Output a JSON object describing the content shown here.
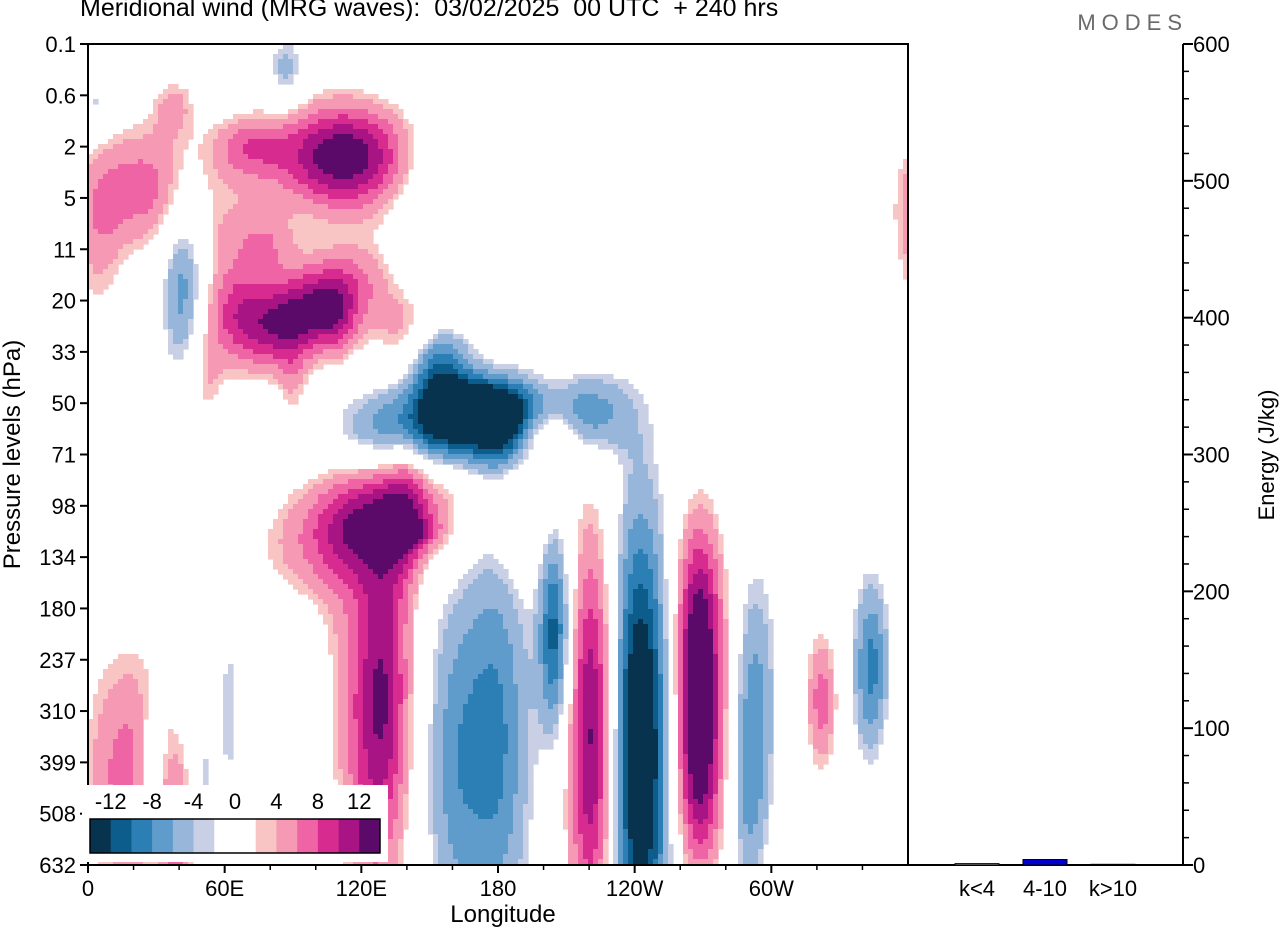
{
  "header": {
    "title": "Meridional wind (MRG waves):  03/02/2025  00 UTC  + 240 hrs",
    "brand": "MODES"
  },
  "chart_data": [
    {
      "type": "heatmap",
      "title": "Meridional wind (MRG waves):  03/02/2025  00 UTC  + 240 hrs",
      "xlabel": "Longitude",
      "ylabel": "Pressure levels (hPa)",
      "x_ticks": [
        "0",
        "60E",
        "120E",
        "180",
        "120W",
        "60W"
      ],
      "y_ticks": [
        "0.1",
        "0.6",
        "2",
        "5",
        "11",
        "20",
        "33",
        "50",
        "71",
        "98",
        "134",
        "180",
        "237",
        "310",
        "399",
        "508",
        "632"
      ],
      "colorbar": {
        "labels": [
          "-12",
          "-8",
          "-4",
          "0",
          "4",
          "8",
          "12"
        ],
        "colors": [
          "#08334f",
          "#0c5c8c",
          "#2b7fb5",
          "#5f9ccb",
          "#97b6da",
          "#c9d0e6",
          "#ffffff",
          "#ffffff",
          "#f8c4c4",
          "#f599b4",
          "#ee64a4",
          "#d72b90",
          "#a81484",
          "#5c0a6a"
        ]
      },
      "features": [
        {
          "kind": "blob",
          "lon": 97,
          "level": 5.2,
          "wlon": 17,
          "wlev": 0.75,
          "value": 13,
          "rot": 0.2
        },
        {
          "kind": "blob",
          "lon": 125,
          "level": 9.3,
          "wlon": 28,
          "wlev": 0.9,
          "value": 10,
          "rot": 0.12
        },
        {
          "kind": "blob",
          "lon": 138,
          "level": 9.5,
          "wlon": 12,
          "wlev": 0.25,
          "value": 5,
          "rot": 0
        },
        {
          "kind": "blob",
          "lon": 161,
          "level": 7.4,
          "wlon": 32,
          "wlev": 0.6,
          "value": -15,
          "rot": 0.05
        },
        {
          "kind": "blob",
          "lon": 171,
          "level": 7.0,
          "wlon": 16,
          "wlev": 0.35,
          "value": -6,
          "rot": 0
        },
        {
          "kind": "blob",
          "lon": 154,
          "level": 6.2,
          "wlon": 10,
          "wlev": 0.55,
          "value": -9,
          "rot": 0
        },
        {
          "kind": "blob",
          "lon": 141,
          "level": 5.5,
          "wlon": 12,
          "wlev": 0.6,
          "value": 5,
          "rot": 0
        },
        {
          "kind": "blob",
          "lon": 184,
          "level": 7.7,
          "wlon": 9,
          "wlev": 0.55,
          "value": -5,
          "rot": 0
        },
        {
          "kind": "blob",
          "lon": 200,
          "level": 7.6,
          "wlon": 10,
          "wlev": 0.35,
          "value": 4.5,
          "rot": 0
        },
        {
          "kind": "blob",
          "lon": 220,
          "level": 7.2,
          "wlon": 12,
          "wlev": 0.6,
          "value": -6,
          "rot": 0
        },
        {
          "kind": "blob",
          "lon": 112,
          "level": 2.2,
          "wlon": 21,
          "wlev": 0.75,
          "value": 14,
          "rot": 0
        },
        {
          "kind": "blob",
          "lon": 66,
          "level": 5.2,
          "wlon": 12,
          "wlev": 0.6,
          "value": 7,
          "rot": 0
        },
        {
          "kind": "blob",
          "lon": 70,
          "level": 2.0,
          "wlon": 12,
          "wlev": 0.45,
          "value": 6,
          "rot": 0
        },
        {
          "kind": "blob",
          "lon": 42,
          "level": 4.7,
          "wlon": 7,
          "wlev": 1.3,
          "value": -8,
          "rot": 0
        },
        {
          "kind": "blob",
          "lon": 51,
          "level": 6.5,
          "wlon": 6,
          "wlev": 0.7,
          "value": 4,
          "rot": 0
        },
        {
          "kind": "blob",
          "lon": 38,
          "level": 1.2,
          "wlon": 7,
          "wlev": 0.45,
          "value": 4,
          "rot": 0
        },
        {
          "kind": "blob",
          "lon": 87,
          "level": 0.5,
          "wlon": 6,
          "wlev": 0.5,
          "value": -5,
          "rot": 0
        },
        {
          "kind": "blob",
          "lon": 148,
          "level": 3.5,
          "wlon": 9,
          "wlev": 1.2,
          "value": -3.5,
          "rot": 0
        },
        {
          "kind": "blob",
          "lon": 176,
          "level": 4.2,
          "wlon": 8,
          "wlev": 0.9,
          "value": 3,
          "rot": 0
        },
        {
          "kind": "blob",
          "lon": 25,
          "level": 2.8,
          "wlon": 17,
          "wlev": 0.9,
          "value": 7,
          "rot": 0
        },
        {
          "kind": "blob",
          "lon": 4,
          "level": 3.8,
          "wlon": 8,
          "wlev": 1.2,
          "value": 4,
          "rot": 0
        },
        {
          "kind": "blob",
          "lon": 3,
          "level": 1.2,
          "wlon": 5,
          "wlev": 0.4,
          "value": -4,
          "rot": 0
        },
        {
          "kind": "blob",
          "lon": 90,
          "level": 6.8,
          "wlon": 5,
          "wlev": 0.8,
          "value": 3.5,
          "rot": 0
        },
        {
          "kind": "blob",
          "lon": 110,
          "level": 5.5,
          "wlon": 6,
          "wlev": 0.5,
          "value": 3.5,
          "rot": 0
        },
        {
          "kind": "blob",
          "lon": 80,
          "level": 3.9,
          "wlon": 9,
          "wlev": 0.45,
          "value": 3.5,
          "rot": 0
        },
        {
          "kind": "blob",
          "lon": 64,
          "level": 3.8,
          "wlon": 13,
          "wlev": 0.8,
          "value": 3.8,
          "rot": 0
        },
        {
          "kind": "blob",
          "lon": 18,
          "level": 14.2,
          "wlon": 15,
          "wlev": 1.8,
          "value": 7,
          "rot": 0
        },
        {
          "kind": "blob",
          "lon": 130,
          "level": 12.6,
          "wlon": 9,
          "wlev": 2.3,
          "value": 11,
          "rot": 0
        },
        {
          "kind": "blob",
          "lon": 117,
          "level": 13.5,
          "wlon": 10,
          "wlev": 3.5,
          "value": 4,
          "rot": -0.15
        },
        {
          "kind": "blob",
          "lon": 180,
          "level": 13.5,
          "wlon": 11,
          "wlev": 3.0,
          "value": -8,
          "rot": 0
        },
        {
          "kind": "blob",
          "lon": 160,
          "level": 14.0,
          "wlon": 10,
          "wlev": 2.6,
          "value": -6,
          "rot": 0
        },
        {
          "kind": "blob",
          "lon": 205,
          "level": 11.5,
          "wlon": 5,
          "wlev": 1.4,
          "value": -11,
          "rot": 0
        },
        {
          "kind": "blob",
          "lon": 222,
          "level": 13.5,
          "wlon": 8,
          "wlev": 2.8,
          "value": 14,
          "rot": 0
        },
        {
          "kind": "blob",
          "lon": 242,
          "level": 13.7,
          "wlon": 10,
          "wlev": 3.2,
          "value": -17,
          "rot": 0
        },
        {
          "kind": "blob",
          "lon": 268,
          "level": 11.4,
          "wlon": 8,
          "wlev": 1.6,
          "value": 13,
          "rot": 0
        },
        {
          "kind": "blob",
          "lon": 268,
          "level": 14.2,
          "wlon": 8,
          "wlev": 1.5,
          "value": 12,
          "rot": 0
        },
        {
          "kind": "blob",
          "lon": 293,
          "level": 12.5,
          "wlon": 7,
          "wlev": 1.8,
          "value": -6,
          "rot": 0
        },
        {
          "kind": "blob",
          "lon": 290,
          "level": 14.8,
          "wlon": 6,
          "wlev": 1.4,
          "value": -5,
          "rot": 0
        },
        {
          "kind": "blob",
          "lon": 322,
          "level": 12.8,
          "wlon": 5,
          "wlev": 1.0,
          "value": 7,
          "rot": 0
        },
        {
          "kind": "blob",
          "lon": 344,
          "level": 12.2,
          "wlon": 6,
          "wlev": 1.3,
          "value": -9,
          "rot": 0
        },
        {
          "kind": "blob",
          "lon": 40,
          "level": 15.5,
          "wlon": 5,
          "wlev": 1.0,
          "value": 6,
          "rot": 0
        },
        {
          "kind": "blob",
          "lon": 28,
          "level": 14.0,
          "wlon": 4,
          "wlev": 0.8,
          "value": -5,
          "rot": 0
        },
        {
          "kind": "blob",
          "lon": 50,
          "level": 14.5,
          "wlon": 4,
          "wlev": 1.3,
          "value": -4,
          "rot": 0
        },
        {
          "kind": "blob",
          "lon": 62,
          "level": 13.0,
          "wlon": 5,
          "wlev": 1.8,
          "value": -3.5,
          "rot": 0
        },
        {
          "kind": "blob",
          "lon": 190,
          "level": 9.0,
          "wlon": 7,
          "wlev": 1.0,
          "value": 4,
          "rot": 0
        },
        {
          "kind": "blob",
          "lon": 205,
          "level": 7.4,
          "wlon": 8,
          "wlev": 0.7,
          "value": 3.5,
          "rot": 0
        },
        {
          "kind": "blob",
          "lon": 140,
          "level": 8.5,
          "wlon": 6,
          "wlev": 1.4,
          "value": 3.5,
          "rot": 0
        }
      ],
      "ylabel_right": "Energy (J/kg)",
      "y_right_ticks": [
        "0",
        "100",
        "200",
        "300",
        "400",
        "500",
        "600"
      ],
      "ylim_right": [
        0,
        600
      ],
      "energy_bars": [
        {
          "category": "k<4",
          "value": 1,
          "color": "#d0d0d0"
        },
        {
          "category": "4-10",
          "value": 4,
          "color": "#0000d0"
        },
        {
          "category": "k>10",
          "value": 0.5,
          "color": "#d0d0d0"
        }
      ]
    }
  ]
}
